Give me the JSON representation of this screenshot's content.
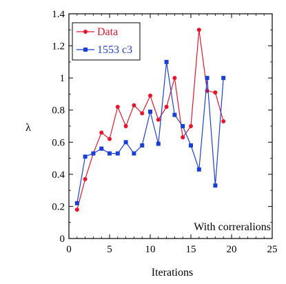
{
  "chart_data": {
    "type": "line",
    "xlabel": "Iterations",
    "ylabel": "λ",
    "xlim": [
      0,
      25
    ],
    "ylim": [
      0,
      1.4
    ],
    "xticks": [
      "0",
      "5",
      "10",
      "15",
      "20",
      "25"
    ],
    "yticks": [
      "0",
      "0.2",
      "0.4",
      "0.6",
      "0.8",
      "1",
      "1.2",
      "1.4"
    ],
    "legend_position": "top-left",
    "annotation": "With correralions",
    "grid": false,
    "series": [
      {
        "name": "Data",
        "color": "#e8142b",
        "marker": "circle",
        "x": [
          1,
          2,
          3,
          4,
          5,
          6,
          7,
          8,
          9,
          10,
          11,
          12,
          13,
          14,
          15,
          16,
          17,
          18,
          19
        ],
        "y": [
          0.18,
          0.37,
          0.53,
          0.66,
          0.62,
          0.82,
          0.7,
          0.83,
          0.78,
          0.89,
          0.74,
          0.82,
          1.0,
          0.63,
          0.7,
          1.3,
          0.92,
          0.91,
          0.73
        ]
      },
      {
        "name": "1553 c3",
        "color": "#1a3fd6",
        "marker": "square",
        "x": [
          1,
          2,
          3,
          4,
          5,
          6,
          7,
          8,
          9,
          10,
          11,
          12,
          13,
          14,
          15,
          16,
          17,
          18,
          19
        ],
        "y": [
          0.22,
          0.51,
          0.53,
          0.56,
          0.53,
          0.53,
          0.6,
          0.53,
          0.58,
          0.79,
          0.59,
          1.1,
          0.77,
          0.7,
          0.58,
          0.43,
          1.0,
          0.33,
          1.0
        ]
      }
    ]
  }
}
